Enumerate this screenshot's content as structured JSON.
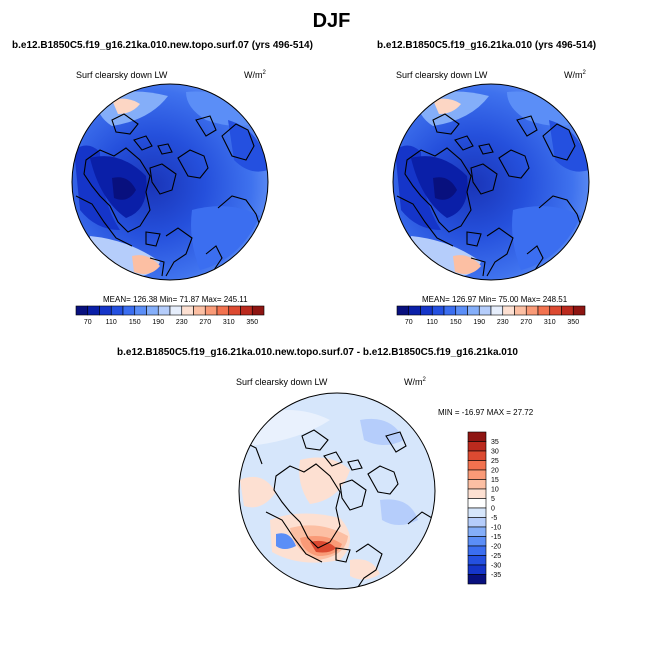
{
  "figure": {
    "title": "DJF"
  },
  "panels": [
    {
      "title": "b.e12.B1850C5.f19_g16.21ka.010.new.topo.surf.07 (yrs 496-514)",
      "variable": "Surf clearsky down LW",
      "units": "W/m",
      "units_exp": "2",
      "stats": "MEAN= 126.38  Min=  71.87  Max= 245.11"
    },
    {
      "title": "b.e12.B1850C5.f19_g16.21ka.010 (yrs 496-514)",
      "variable": "Surf clearsky down LW",
      "units": "W/m",
      "units_exp": "2",
      "stats": "MEAN= 126.97  Min=  75.00  Max= 248.51"
    },
    {
      "title": "b.e12.B1850C5.f19_g16.21ka.010.new.topo.surf.07 - b.e12.B1850C5.f19_g16.21ka.010",
      "variable": "Surf clearsky down LW",
      "units": "W/m",
      "units_exp": "2",
      "stats": "MIN = -16.97 MAX =  27.72"
    }
  ],
  "chart_data": [
    {
      "type": "heatmap",
      "projection": "polar stereographic (north pole)",
      "title": "b.e12.B1850C5.f19_g16.21ka.010.new.topo.surf.07 (yrs 496-514)",
      "variable": "Surf clearsky down LW",
      "units": "W/m2",
      "mean": 126.38,
      "min": 71.87,
      "max": 245.11,
      "colorbar": {
        "orientation": "horizontal",
        "ticks": [
          70,
          110,
          150,
          190,
          230,
          270,
          310,
          350
        ],
        "colors": [
          "#08107e",
          "#0a1fa8",
          "#1535c9",
          "#2450e0",
          "#3b6ef0",
          "#5b8ef7",
          "#84aef9",
          "#b5cdfb",
          "#e6eefc",
          "#fde0d2",
          "#fcbfa3",
          "#f99a77",
          "#f2724f",
          "#dc4a31",
          "#bb2a1e",
          "#8e1512"
        ]
      }
    },
    {
      "type": "heatmap",
      "projection": "polar stereographic (north pole)",
      "title": "b.e12.B1850C5.f19_g16.21ka.010 (yrs 496-514)",
      "variable": "Surf clearsky down LW",
      "units": "W/m2",
      "mean": 126.97,
      "min": 75.0,
      "max": 248.51,
      "colorbar": {
        "orientation": "horizontal",
        "ticks": [
          70,
          110,
          150,
          190,
          230,
          270,
          310,
          350
        ],
        "colors": [
          "#08107e",
          "#0a1fa8",
          "#1535c9",
          "#2450e0",
          "#3b6ef0",
          "#5b8ef7",
          "#84aef9",
          "#b5cdfb",
          "#e6eefc",
          "#fde0d2",
          "#fcbfa3",
          "#f99a77",
          "#f2724f",
          "#dc4a31",
          "#bb2a1e",
          "#8e1512"
        ]
      }
    },
    {
      "type": "heatmap",
      "projection": "polar stereographic (north pole)",
      "title": "b.e12.B1850C5.f19_g16.21ka.010.new.topo.surf.07 - b.e12.B1850C5.f19_g16.21ka.010",
      "variable": "Surf clearsky down LW",
      "units": "W/m2",
      "min": -16.97,
      "max": 27.72,
      "colorbar": {
        "orientation": "vertical",
        "ticks": [
          "35",
          "30",
          "25",
          "20",
          "15",
          "10",
          "5",
          "0",
          "-5",
          "-10",
          "-15",
          "-20",
          "-25",
          "-30",
          "-35"
        ],
        "colors": [
          "#8e1512",
          "#bb2a1e",
          "#dc4a31",
          "#f2724f",
          "#f99a77",
          "#fcbfa3",
          "#fde0d2",
          "#ffffff",
          "#d6e6fb",
          "#b5cdfb",
          "#84aef9",
          "#5b8ef7",
          "#3b6ef0",
          "#2450e0",
          "#1535c9",
          "#08107e"
        ]
      }
    }
  ]
}
